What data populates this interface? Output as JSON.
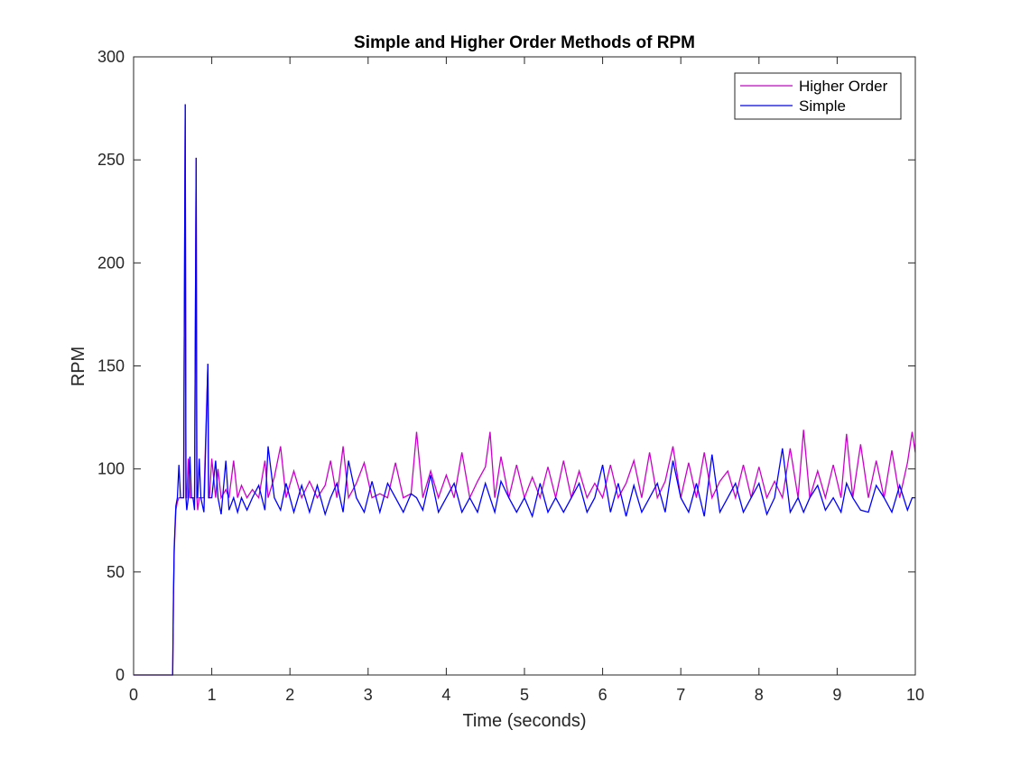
{
  "chart_data": {
    "type": "line",
    "title": "Simple and Higher Order Methods of RPM",
    "xlabel": "Time (seconds)",
    "ylabel": "RPM",
    "xlim": [
      0,
      10
    ],
    "ylim": [
      0,
      300
    ],
    "xticks": [
      "0",
      "1",
      "2",
      "3",
      "4",
      "5",
      "6",
      "7",
      "8",
      "9",
      "10"
    ],
    "yticks": [
      "0",
      "50",
      "100",
      "150",
      "200",
      "250",
      "300"
    ],
    "grid": false,
    "legend_location": "top-right",
    "legend": [
      "Higher Order",
      "Simple"
    ],
    "baseline": 86,
    "series": [
      {
        "name": "Higher Order",
        "color": "#cc00cc",
        "x": [
          0,
          0.5,
          0.51,
          0.52,
          0.53,
          0.54,
          0.56,
          0.58,
          0.6,
          0.62,
          0.64,
          0.66,
          0.67,
          0.68,
          0.7,
          0.72,
          0.74,
          0.76,
          0.78,
          0.8,
          0.81,
          0.82,
          0.84,
          0.86,
          0.9,
          0.95,
          0.96,
          0.97,
          1.0,
          1.05,
          1.08,
          1.12,
          1.18,
          1.22,
          1.28,
          1.33,
          1.38,
          1.45,
          1.52,
          1.6,
          1.68,
          1.72,
          1.8,
          1.88,
          1.95,
          2.05,
          2.15,
          2.25,
          2.35,
          2.45,
          2.52,
          2.6,
          2.68,
          2.75,
          2.85,
          2.95,
          3.05,
          3.15,
          3.25,
          3.35,
          3.45,
          3.55,
          3.62,
          3.7,
          3.8,
          3.9,
          4.0,
          4.1,
          4.2,
          4.3,
          4.4,
          4.5,
          4.56,
          4.62,
          4.7,
          4.8,
          4.9,
          5.0,
          5.1,
          5.2,
          5.3,
          5.4,
          5.5,
          5.6,
          5.7,
          5.8,
          5.9,
          6.0,
          6.1,
          6.2,
          6.3,
          6.4,
          6.5,
          6.6,
          6.7,
          6.8,
          6.9,
          7.0,
          7.1,
          7.2,
          7.3,
          7.4,
          7.5,
          7.6,
          7.7,
          7.8,
          7.9,
          8.0,
          8.1,
          8.2,
          8.3,
          8.4,
          8.5,
          8.57,
          8.65,
          8.75,
          8.85,
          8.95,
          9.05,
          9.12,
          9.2,
          9.3,
          9.4,
          9.5,
          9.6,
          9.7,
          9.8,
          9.9,
          9.96,
          10.0
        ],
        "y": [
          0,
          0,
          38,
          60,
          70,
          80,
          84,
          86,
          86,
          86,
          86,
          277,
          86,
          86,
          105,
          86,
          86,
          86,
          86,
          251,
          86,
          80,
          86,
          86,
          86,
          151,
          86,
          86,
          105,
          86,
          100,
          86,
          90,
          86,
          104,
          86,
          92,
          86,
          90,
          86,
          104,
          86,
          96,
          111,
          86,
          99,
          86,
          94,
          86,
          92,
          104,
          86,
          111,
          86,
          93,
          103,
          86,
          88,
          86,
          103,
          86,
          88,
          118,
          86,
          99,
          86,
          97,
          86,
          108,
          86,
          94,
          101,
          118,
          86,
          106,
          86,
          102,
          86,
          96,
          86,
          101,
          86,
          104,
          86,
          99,
          86,
          93,
          86,
          102,
          86,
          93,
          104,
          86,
          108,
          86,
          94,
          111,
          86,
          103,
          86,
          108,
          86,
          94,
          99,
          86,
          102,
          86,
          101,
          86,
          94,
          86,
          110,
          86,
          119,
          86,
          99,
          86,
          102,
          86,
          117,
          86,
          112,
          86,
          104,
          86,
          109,
          86,
          103,
          118,
          108
        ]
      },
      {
        "name": "Simple",
        "color": "#0000ff",
        "x": [
          0,
          0.5,
          0.51,
          0.52,
          0.53,
          0.54,
          0.56,
          0.58,
          0.6,
          0.62,
          0.64,
          0.66,
          0.67,
          0.68,
          0.7,
          0.72,
          0.74,
          0.76,
          0.78,
          0.8,
          0.81,
          0.82,
          0.84,
          0.86,
          0.9,
          0.95,
          0.96,
          0.97,
          1.0,
          1.05,
          1.08,
          1.12,
          1.18,
          1.22,
          1.28,
          1.33,
          1.38,
          1.45,
          1.52,
          1.6,
          1.68,
          1.72,
          1.8,
          1.88,
          1.95,
          2.05,
          2.15,
          2.25,
          2.35,
          2.45,
          2.52,
          2.6,
          2.68,
          2.75,
          2.85,
          2.95,
          3.05,
          3.15,
          3.25,
          3.35,
          3.45,
          3.55,
          3.62,
          3.7,
          3.8,
          3.9,
          4.0,
          4.1,
          4.2,
          4.3,
          4.4,
          4.5,
          4.56,
          4.62,
          4.7,
          4.8,
          4.9,
          5.0,
          5.1,
          5.2,
          5.3,
          5.4,
          5.5,
          5.6,
          5.7,
          5.8,
          5.9,
          6.0,
          6.1,
          6.2,
          6.3,
          6.4,
          6.5,
          6.6,
          6.7,
          6.8,
          6.9,
          7.0,
          7.1,
          7.2,
          7.3,
          7.4,
          7.5,
          7.6,
          7.7,
          7.8,
          7.9,
          8.0,
          8.1,
          8.2,
          8.3,
          8.4,
          8.5,
          8.57,
          8.65,
          8.75,
          8.85,
          8.95,
          9.05,
          9.12,
          9.2,
          9.3,
          9.4,
          9.5,
          9.6,
          9.7,
          9.8,
          9.9,
          9.96,
          10.0
        ],
        "y": [
          0,
          0,
          40,
          62,
          72,
          82,
          86,
          102,
          86,
          86,
          86,
          277,
          86,
          80,
          86,
          106,
          86,
          86,
          80,
          251,
          86,
          86,
          105,
          86,
          79,
          151,
          86,
          86,
          86,
          104,
          86,
          78,
          104,
          80,
          86,
          79,
          86,
          80,
          86,
          92,
          80,
          111,
          86,
          80,
          93,
          79,
          92,
          79,
          92,
          78,
          86,
          93,
          79,
          104,
          86,
          79,
          94,
          79,
          93,
          86,
          79,
          88,
          86,
          80,
          97,
          79,
          86,
          93,
          79,
          86,
          79,
          93,
          86,
          79,
          94,
          86,
          79,
          86,
          77,
          93,
          79,
          86,
          79,
          86,
          93,
          79,
          86,
          102,
          79,
          93,
          77,
          92,
          79,
          86,
          93,
          79,
          104,
          86,
          79,
          93,
          77,
          107,
          79,
          86,
          93,
          79,
          86,
          93,
          78,
          86,
          110,
          79,
          86,
          79,
          86,
          92,
          80,
          86,
          79,
          93,
          86,
          80,
          79,
          92,
          86,
          79,
          92,
          80,
          86,
          86
        ]
      }
    ]
  }
}
